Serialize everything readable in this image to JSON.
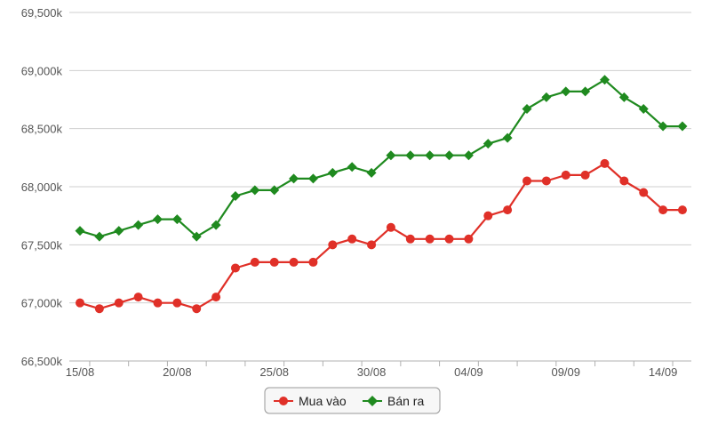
{
  "chart_data": {
    "type": "line",
    "title": "",
    "xlabel": "",
    "ylabel": "",
    "ylim": [
      66500,
      69500
    ],
    "yticks": [
      66500,
      67000,
      67500,
      68000,
      68500,
      69000,
      69500
    ],
    "ytick_labels": [
      "66,500k",
      "67,000k",
      "67,500k",
      "68,000k",
      "68,500k",
      "69,000k",
      "69,500k"
    ],
    "x_tick_labels": [
      "15/08",
      "20/08",
      "25/08",
      "30/08",
      "04/09",
      "09/09",
      "14/09"
    ],
    "x_tick_positions": [
      0,
      5,
      10,
      15,
      20,
      25,
      30
    ],
    "grid": "horizontal",
    "legend_position": "bottom-center",
    "series": [
      {
        "name": "Mua vào",
        "color": "#e03028",
        "marker": "circle",
        "values": [
          67000,
          66950,
          67000,
          67050,
          67000,
          67000,
          66950,
          67050,
          67300,
          67350,
          67350,
          67350,
          67350,
          67500,
          67550,
          67500,
          67650,
          67550,
          67550,
          67550,
          67550,
          67750,
          67800,
          68050,
          68050,
          68100,
          68100,
          68200,
          68050,
          67950,
          67800,
          67800
        ]
      },
      {
        "name": "Bán ra",
        "color": "#1f8a1f",
        "marker": "diamond",
        "values": [
          67620,
          67570,
          67620,
          67670,
          67720,
          67720,
          67570,
          67670,
          67920,
          67970,
          67970,
          68070,
          68070,
          68120,
          68170,
          68120,
          68270,
          68270,
          68270,
          68270,
          68270,
          68370,
          68420,
          68670,
          68770,
          68820,
          68820,
          68920,
          68770,
          68670,
          68520,
          68520
        ]
      }
    ]
  },
  "legend": {
    "items": [
      {
        "label": "Mua vào",
        "color": "#e03028",
        "icon": "circle-marker-icon"
      },
      {
        "label": "Bán ra",
        "color": "#1f8a1f",
        "icon": "diamond-marker-icon"
      }
    ]
  }
}
